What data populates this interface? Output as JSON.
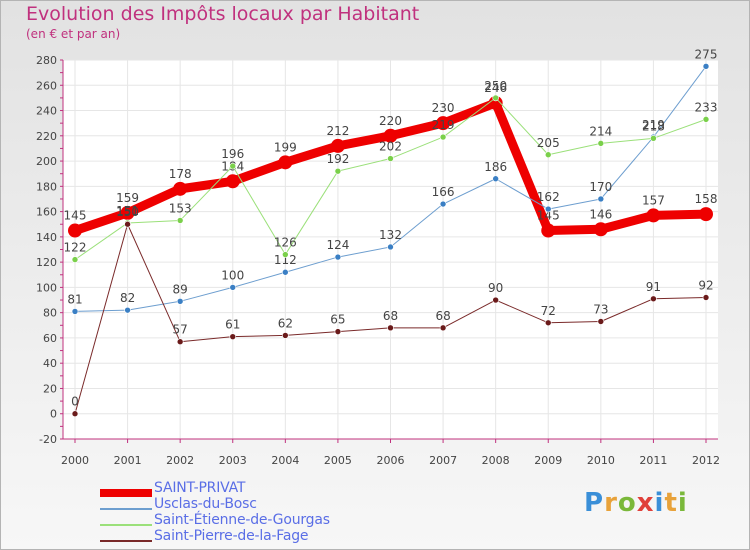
{
  "header": {
    "title": "Evolution des Impôts locaux par Habitant",
    "subtitle": "(en € et par an)"
  },
  "logo": {
    "letters": [
      "P",
      "r",
      "o",
      "x",
      "i",
      "t",
      "i"
    ],
    "colors": [
      "#3a8fd8",
      "#e8a23a",
      "#7ab83a",
      "#e0403a",
      "#3a8fd8",
      "#e8a23a",
      "#7ab83a"
    ]
  },
  "chart_data": {
    "type": "line",
    "title": "Evolution des Impôts locaux par Habitant",
    "subtitle": "(en € et par an)",
    "x": [
      2000,
      2001,
      2002,
      2003,
      2004,
      2005,
      2006,
      2007,
      2008,
      2009,
      2010,
      2011,
      2012
    ],
    "ylim": [
      -20,
      280
    ],
    "yticks": [
      -20,
      0,
      20,
      40,
      60,
      80,
      100,
      120,
      140,
      160,
      180,
      200,
      220,
      240,
      260,
      280
    ],
    "grid": true,
    "legend_position": "bottom-left",
    "series": [
      {
        "name": "SAINT-PRIVAT",
        "color": "#ee0000",
        "line_width": 9,
        "values": [
          145,
          159,
          178,
          184,
          199,
          212,
          220,
          230,
          246,
          145,
          146,
          157,
          158
        ],
        "labels": [
          "145",
          "159",
          "178",
          "184",
          "199",
          "212",
          "220",
          "230",
          "246",
          "145",
          "146",
          "157",
          "158"
        ]
      },
      {
        "name": "Usclas-du-Bosc",
        "color": "#6d9ecf",
        "marker": "#3a7fc4",
        "line_width": 1,
        "values": [
          81,
          82,
          89,
          100,
          112,
          124,
          132,
          166,
          186,
          162,
          170,
          219,
          275
        ],
        "labels": [
          "81",
          "82",
          "89",
          "100",
          "112",
          "124",
          "132",
          "166",
          "186",
          "162",
          "170",
          "219",
          "275"
        ]
      },
      {
        "name": "Saint-Étienne-de-Gourgas",
        "color": "#9be07a",
        "marker": "#7ad04a",
        "line_width": 1,
        "values": [
          122,
          151,
          153,
          196,
          126,
          192,
          202,
          219,
          250,
          205,
          214,
          218,
          233
        ],
        "labels": [
          "122",
          "151",
          "153",
          "196",
          "126",
          "192",
          "202",
          "219",
          "250",
          "205",
          "214",
          "218",
          "233"
        ]
      },
      {
        "name": "Saint-Pierre-de-la-Fage",
        "color": "#7a2a2a",
        "marker": "#6a1a1a",
        "line_width": 1,
        "values": [
          0,
          150,
          57,
          61,
          62,
          65,
          68,
          68,
          90,
          72,
          73,
          91,
          92
        ],
        "labels": [
          "0",
          "150",
          "57",
          "61",
          "62",
          "65",
          "68",
          "68",
          "90",
          "72",
          "73",
          "91",
          "92"
        ]
      }
    ]
  }
}
